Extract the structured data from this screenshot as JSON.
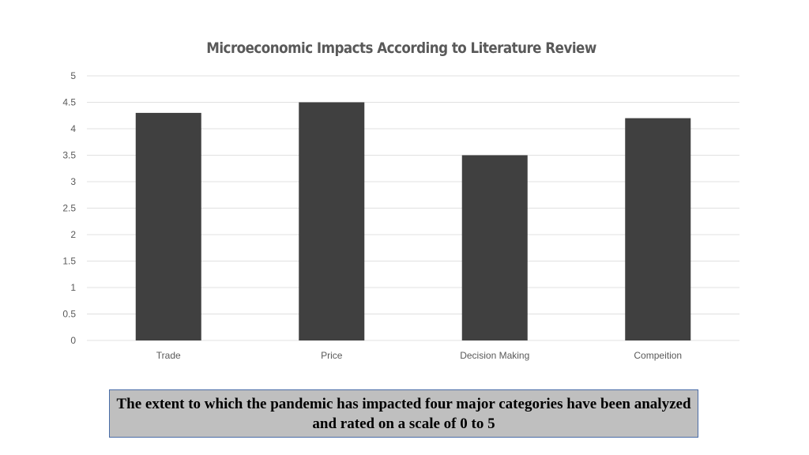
{
  "chart_data": {
    "type": "bar",
    "title": "Microeconomic Impacts According to Literature Review",
    "categories": [
      "Trade",
      "Price",
      "Decision Making",
      "Compeition"
    ],
    "values": [
      4.3,
      4.5,
      3.5,
      4.2
    ],
    "ylim": [
      0,
      5
    ],
    "yticks": [
      "0",
      "0.5",
      "1",
      "1.5",
      "2",
      "2.5",
      "3",
      "3.5",
      "4",
      "4.5",
      "5"
    ],
    "xlabel": "",
    "ylabel": "",
    "grid": true,
    "bar_color": "#404040",
    "grid_color": "#e0e0e0"
  },
  "caption": {
    "text": "The extent to which the pandemic has impacted four major categories have been analyzed and rated on a scale of 0 to 5"
  }
}
